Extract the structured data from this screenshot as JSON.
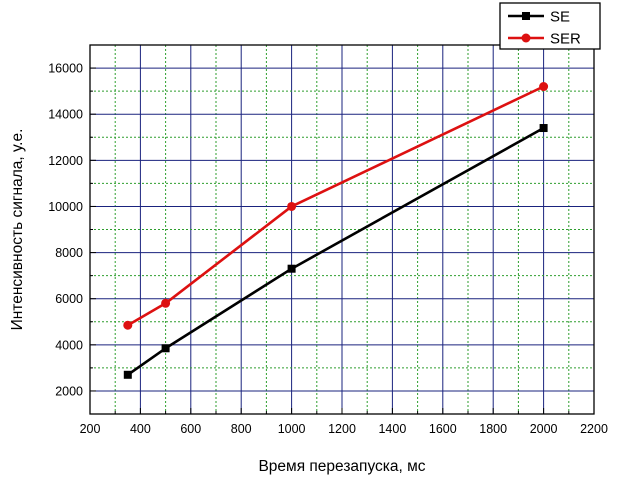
{
  "chart_data": {
    "type": "line",
    "title": "",
    "xlabel": "Время перезапуска, мс",
    "ylabel": "Интенсивность сигнала, у.е.",
    "xlim": [
      200,
      2200
    ],
    "ylim": [
      1000,
      17000
    ],
    "xticks": [
      200,
      400,
      600,
      800,
      1000,
      1200,
      1400,
      1600,
      1800,
      2000,
      2200
    ],
    "yticks": [
      2000,
      4000,
      6000,
      8000,
      10000,
      12000,
      14000,
      16000
    ],
    "grid": true,
    "legend_position": "top-right",
    "series": [
      {
        "name": "SE",
        "color": "#000000",
        "marker": "square",
        "x": [
          350,
          500,
          1000,
          2000
        ],
        "y": [
          2700,
          3850,
          7300,
          13400
        ]
      },
      {
        "name": "SER",
        "color": "#dd1111",
        "marker": "circle",
        "x": [
          350,
          500,
          1000,
          2000
        ],
        "y": [
          4850,
          5800,
          10000,
          15200
        ]
      }
    ]
  }
}
